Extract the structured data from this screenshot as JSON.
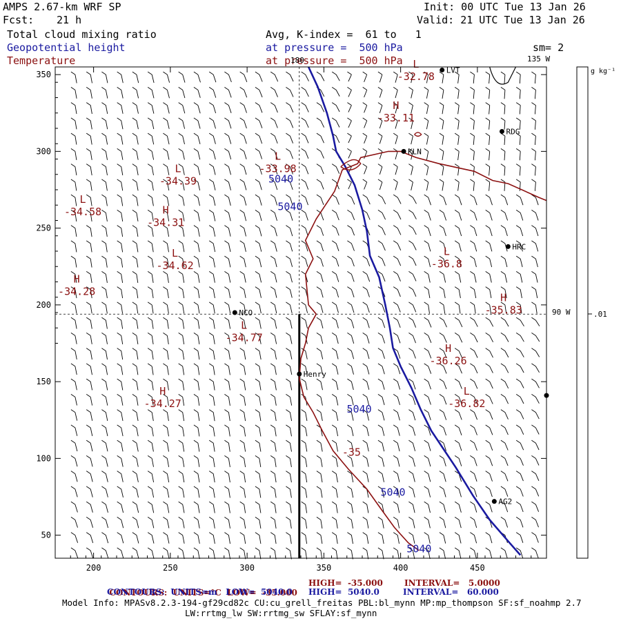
{
  "header": {
    "model": "AMPS 2.67-km WRF SP",
    "init": "Init: 00 UTC Tue 13 Jan 26",
    "fcst_label": "Fcst:",
    "fcst_value": "21 h",
    "valid": "Valid: 21 UTC Tue 13 Jan 26",
    "field1": "Total cloud mixing ratio",
    "field2": "Geopotential height",
    "field3": "Temperature",
    "avg": "Avg, K-index =  61 to   1",
    "pressure1": "at pressure =  500 hPa",
    "pressure2": "at pressure =  500 hPa",
    "sm": "sm= 2"
  },
  "colorbar": {
    "units": "g kg⁻¹",
    "tick": ".01"
  },
  "map_labels": {
    "lon_180": "180",
    "lon_135w": "135 W",
    "lon_90w": "90 W"
  },
  "stations": [
    {
      "name": "LVT",
      "x": 427,
      "y": 353
    },
    {
      "name": "RDG",
      "x": 466,
      "y": 313
    },
    {
      "name": "KLN",
      "x": 402,
      "y": 300
    },
    {
      "name": "HRC",
      "x": 470,
      "y": 238
    },
    {
      "name": "NCO",
      "x": 292,
      "y": 195
    },
    {
      "name": "Henry",
      "x": 334,
      "y": 155
    },
    {
      "name": "AG2",
      "x": 461,
      "y": 72
    },
    {
      "name": "",
      "x": 495,
      "y": 141
    }
  ],
  "temperature_extrema": [
    {
      "kind": "L",
      "value": "-32.78",
      "x": 410,
      "y": 350
    },
    {
      "kind": "H",
      "value": "-33.11",
      "x": 397,
      "y": 323
    },
    {
      "kind": "L",
      "value": "-33.98",
      "x": 320,
      "y": 290
    },
    {
      "kind": "L",
      "value": "-34.39",
      "x": 255,
      "y": 282
    },
    {
      "kind": "L",
      "value": "-34.58",
      "x": 193,
      "y": 262
    },
    {
      "kind": "H",
      "value": "-34.31",
      "x": 247,
      "y": 255
    },
    {
      "kind": "L",
      "value": "-34.62",
      "x": 253,
      "y": 227
    },
    {
      "kind": "H",
      "value": "-34.28",
      "x": 189,
      "y": 210
    },
    {
      "kind": "L",
      "value": "-34.77",
      "x": 298,
      "y": 180
    },
    {
      "kind": "L",
      "value": "-36.8",
      "x": 430,
      "y": 228
    },
    {
      "kind": "H",
      "value": "-35.83",
      "x": 467,
      "y": 198
    },
    {
      "kind": "H",
      "value": "-36.26",
      "x": 431,
      "y": 165
    },
    {
      "kind": "H",
      "value": "-34.27",
      "x": 245,
      "y": 137
    },
    {
      "kind": "L",
      "value": "-36.82",
      "x": 443,
      "y": 137
    }
  ],
  "contour_labels": {
    "height": [
      {
        "value": "5040",
        "x": 322,
        "y": 282
      },
      {
        "value": "5040",
        "x": 328,
        "y": 264
      },
      {
        "value": "5040",
        "x": 373,
        "y": 132
      },
      {
        "value": "5040",
        "x": 395,
        "y": 78
      },
      {
        "value": "5040",
        "x": 412,
        "y": 41
      }
    ],
    "temperature": [
      {
        "value": "-35",
        "x": 368,
        "y": 104
      }
    ]
  },
  "chart_data": {
    "type": "contour",
    "xlim": [
      175,
      495
    ],
    "ylim": [
      35,
      355
    ],
    "x_ticks": [
      "200",
      "250",
      "300",
      "350",
      "400",
      "450"
    ],
    "y_ticks": [
      "50",
      "100",
      "150",
      "200",
      "250",
      "300",
      "350"
    ],
    "height_contour_5040": [
      [
        340,
        355
      ],
      [
        346,
        342
      ],
      [
        352,
        325
      ],
      [
        356,
        310
      ],
      [
        358,
        300
      ],
      [
        364,
        290
      ],
      [
        370,
        278
      ],
      [
        375,
        262
      ],
      [
        378,
        248
      ],
      [
        380,
        232
      ],
      [
        386,
        218
      ],
      [
        390,
        200
      ],
      [
        393,
        185
      ],
      [
        395,
        172
      ],
      [
        400,
        160
      ],
      [
        407,
        146
      ],
      [
        413,
        132
      ],
      [
        420,
        118
      ],
      [
        428,
        106
      ],
      [
        436,
        94
      ],
      [
        447,
        76
      ],
      [
        458,
        60
      ],
      [
        471,
        45
      ],
      [
        478,
        37
      ]
    ],
    "temperature_contour_-35": [
      [
        345,
        194
      ],
      [
        340,
        200
      ],
      [
        339,
        210
      ],
      [
        338,
        220
      ],
      [
        343,
        230
      ],
      [
        338,
        242
      ],
      [
        345,
        256
      ],
      [
        357,
        274
      ],
      [
        362,
        288
      ],
      [
        372,
        292
      ],
      [
        374,
        296
      ],
      [
        392,
        300
      ],
      [
        400,
        300
      ],
      [
        410,
        296
      ],
      [
        425,
        292
      ],
      [
        448,
        287
      ],
      [
        460,
        281
      ],
      [
        470,
        279
      ],
      [
        490,
        270
      ],
      [
        495,
        268
      ]
    ],
    "temperature_contour_-35_south": [
      [
        345,
        194
      ],
      [
        340,
        185
      ],
      [
        338,
        175
      ],
      [
        335,
        165
      ],
      [
        334,
        152
      ],
      [
        337,
        140
      ],
      [
        343,
        130
      ],
      [
        349,
        118
      ],
      [
        356,
        105
      ],
      [
        366,
        93
      ],
      [
        378,
        80
      ],
      [
        388,
        66
      ],
      [
        396,
        55
      ],
      [
        405,
        45
      ],
      [
        412,
        40
      ]
    ]
  },
  "footer": {
    "line1_left": "CONTOURS:  UNITS=°C  LOW=  -35.000",
    "line1_mid": "HIGH=  -35.000",
    "line1_right": "INTERVAL=   5.0000",
    "line2_left": "CONTOURS:  UNITS=m   LOW=  5040.0",
    "line2_mid": "HIGH=  5040.0",
    "line2_right": "INTERVAL=   60.000",
    "info1": "Model Info: MPASv8.2.3-194-gf29cd82c CU:cu_grell_freitas PBL:bl_mynn MP:mp_thompson SF:sf_noahmp 2.7",
    "info2": "LW:rrtmg_lw SW:rrtmg_sw SFLAY:sf_mynn"
  }
}
